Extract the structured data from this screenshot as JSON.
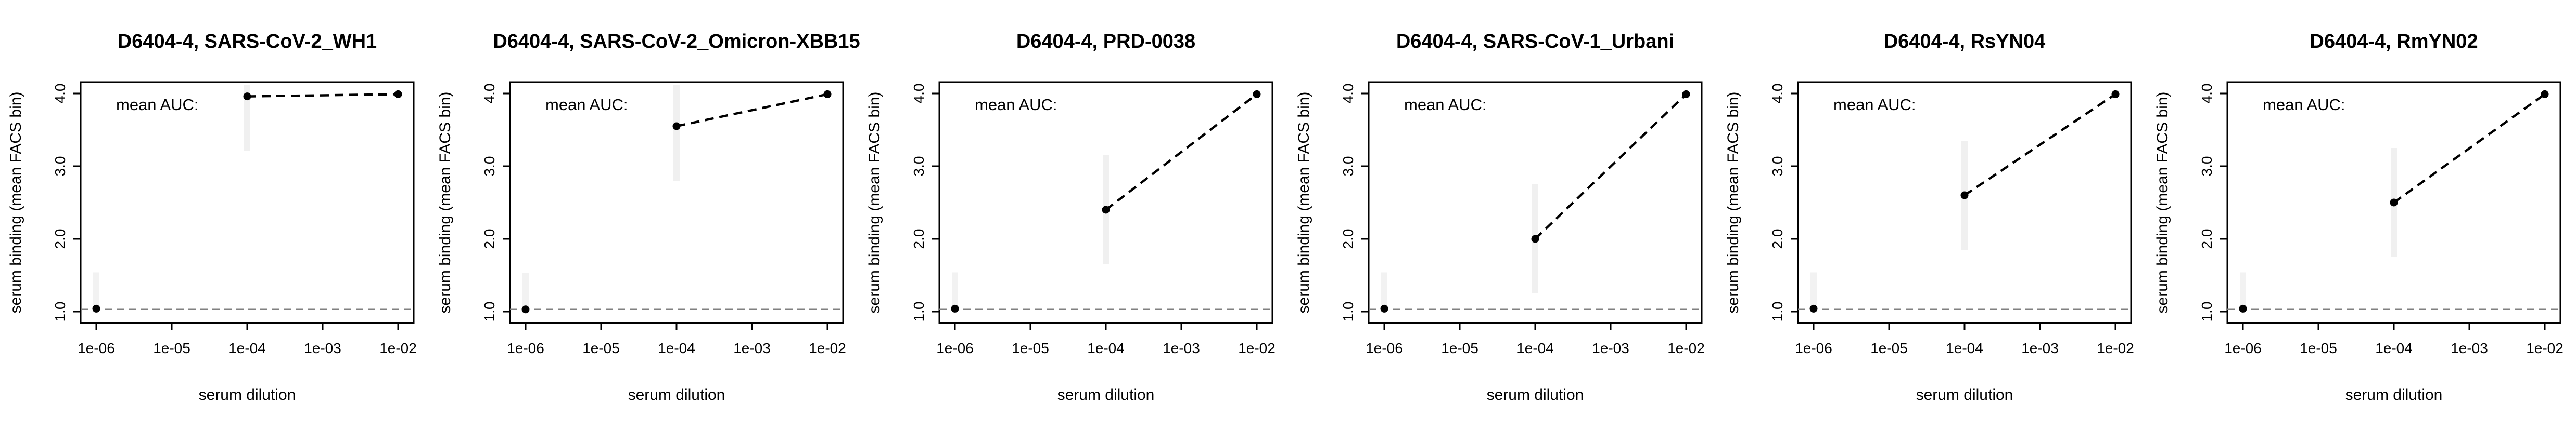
{
  "colors": {
    "axis": "#000000",
    "dashed_line": "#000000",
    "baseline": "#808080",
    "point": "#000000",
    "background": "#ffffff"
  },
  "chart_data": [
    {
      "type": "line",
      "title": "D6404-4, SARS-CoV-2_WH1",
      "xlabel": "serum dilution",
      "ylabel": "serum binding (mean FACS bin)",
      "x_scale": "log",
      "xlim": [
        1e-06,
        0.01
      ],
      "ylim": [
        1.0,
        4.0
      ],
      "xticks": [
        "1e-06",
        "1e-05",
        "1e-04",
        "1e-03",
        "1e-02"
      ],
      "yticks": [
        "1.0",
        "2.0",
        "3.0",
        "4.0"
      ],
      "annotation": "mean AUC:",
      "baseline_y": 1.03,
      "points": [
        {
          "x": 1e-06,
          "y": 1.04
        },
        {
          "x": 0.0001,
          "y": 3.96
        },
        {
          "x": 0.01,
          "y": 3.99
        }
      ],
      "dashed_segment": [
        {
          "x": 0.0001,
          "y": 3.96
        },
        {
          "x": 0.01,
          "y": 3.99
        }
      ]
    },
    {
      "type": "line",
      "title": "D6404-4, SARS-CoV-2_Omicron-XBB15",
      "xlabel": "serum dilution",
      "ylabel": "serum binding (mean FACS bin)",
      "x_scale": "log",
      "xlim": [
        1e-06,
        0.01
      ],
      "ylim": [
        1.0,
        4.0
      ],
      "xticks": [
        "1e-06",
        "1e-05",
        "1e-04",
        "1e-03",
        "1e-02"
      ],
      "yticks": [
        "1.0",
        "2.0",
        "3.0",
        "4.0"
      ],
      "annotation": "mean AUC:",
      "baseline_y": 1.03,
      "points": [
        {
          "x": 1e-06,
          "y": 1.03
        },
        {
          "x": 0.0001,
          "y": 3.55
        },
        {
          "x": 0.01,
          "y": 3.99
        }
      ],
      "dashed_segment": [
        {
          "x": 0.0001,
          "y": 3.55
        },
        {
          "x": 0.01,
          "y": 3.99
        }
      ]
    },
    {
      "type": "line",
      "title": "D6404-4, PRD-0038",
      "xlabel": "serum dilution",
      "ylabel": "serum binding (mean FACS bin)",
      "x_scale": "log",
      "xlim": [
        1e-06,
        0.01
      ],
      "ylim": [
        1.0,
        4.0
      ],
      "xticks": [
        "1e-06",
        "1e-05",
        "1e-04",
        "1e-03",
        "1e-02"
      ],
      "yticks": [
        "1.0",
        "2.0",
        "3.0",
        "4.0"
      ],
      "annotation": "mean AUC:",
      "baseline_y": 1.03,
      "points": [
        {
          "x": 1e-06,
          "y": 1.04
        },
        {
          "x": 0.0001,
          "y": 2.4
        },
        {
          "x": 0.01,
          "y": 3.99
        }
      ],
      "dashed_segment": [
        {
          "x": 0.0001,
          "y": 2.4
        },
        {
          "x": 0.01,
          "y": 3.99
        }
      ]
    },
    {
      "type": "line",
      "title": "D6404-4, SARS-CoV-1_Urbani",
      "xlabel": "serum dilution",
      "ylabel": "serum binding (mean FACS bin)",
      "x_scale": "log",
      "xlim": [
        1e-06,
        0.01
      ],
      "ylim": [
        1.0,
        4.0
      ],
      "xticks": [
        "1e-06",
        "1e-05",
        "1e-04",
        "1e-03",
        "1e-02"
      ],
      "yticks": [
        "1.0",
        "2.0",
        "3.0",
        "4.0"
      ],
      "annotation": "mean AUC:",
      "baseline_y": 1.03,
      "points": [
        {
          "x": 1e-06,
          "y": 1.04
        },
        {
          "x": 0.0001,
          "y": 2.0
        },
        {
          "x": 0.01,
          "y": 3.99
        }
      ],
      "dashed_segment": [
        {
          "x": 0.0001,
          "y": 2.0
        },
        {
          "x": 0.01,
          "y": 3.99
        }
      ]
    },
    {
      "type": "line",
      "title": "D6404-4, RsYN04",
      "xlabel": "serum dilution",
      "ylabel": "serum binding (mean FACS bin)",
      "x_scale": "log",
      "xlim": [
        1e-06,
        0.01
      ],
      "ylim": [
        1.0,
        4.0
      ],
      "xticks": [
        "1e-06",
        "1e-05",
        "1e-04",
        "1e-03",
        "1e-02"
      ],
      "yticks": [
        "1.0",
        "2.0",
        "3.0",
        "4.0"
      ],
      "annotation": "mean AUC:",
      "baseline_y": 1.03,
      "points": [
        {
          "x": 1e-06,
          "y": 1.04
        },
        {
          "x": 0.0001,
          "y": 2.6
        },
        {
          "x": 0.01,
          "y": 3.99
        }
      ],
      "dashed_segment": [
        {
          "x": 0.0001,
          "y": 2.6
        },
        {
          "x": 0.01,
          "y": 3.99
        }
      ]
    },
    {
      "type": "line",
      "title": "D6404-4, RmYN02",
      "xlabel": "serum dilution",
      "ylabel": "serum binding (mean FACS bin)",
      "x_scale": "log",
      "xlim": [
        1e-06,
        0.01
      ],
      "ylim": [
        1.0,
        4.0
      ],
      "xticks": [
        "1e-06",
        "1e-05",
        "1e-04",
        "1e-03",
        "1e-02"
      ],
      "yticks": [
        "1.0",
        "2.0",
        "3.0",
        "4.0"
      ],
      "annotation": "mean AUC:",
      "baseline_y": 1.03,
      "points": [
        {
          "x": 1e-06,
          "y": 1.04
        },
        {
          "x": 0.0001,
          "y": 2.5
        },
        {
          "x": 0.01,
          "y": 3.99
        }
      ],
      "dashed_segment": [
        {
          "x": 0.0001,
          "y": 2.5
        },
        {
          "x": 0.01,
          "y": 3.99
        }
      ]
    }
  ]
}
